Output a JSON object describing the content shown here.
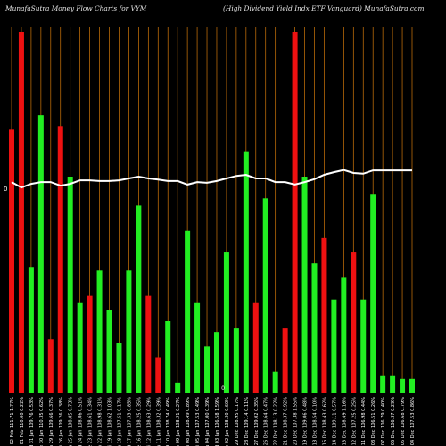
{
  "header": {
    "left": "MunafaSutra  Money Flow  Charts for VYM",
    "right": "(High Dividend Yield Indx ETF Vanguard) MunafaSutra.com"
  },
  "chart_data": {
    "type": "bar",
    "background": "#000000",
    "colors": {
      "up": "#22ee22",
      "down": "#ee1111",
      "line": "#ffffff",
      "grid": "#d2780a"
    },
    "ylim": [
      0,
      100
    ],
    "categories": [
      "Fri 02 Feb 111.71 1.77%",
      "Thu 01 Feb 110.00 0.22%",
      "Wed 31 Jan 109.76 0.53%",
      "Tue 30 Jan 110.35 0.62%",
      "Mon 29 Jan 109.66 0.37%",
      "Fri 26 Jan 109.26 0.38%",
      "Thu 25 Jan 108.85 0.73%",
      "Wed 24 Jan 108.06 0.51%",
      "Tue 23 Jan 108.61 0.34%",
      "Mon 22 Jan 108.98 0.31%",
      "Fri 19 Jan 108.62 1.03%",
      "Thu 18 Jan 107.51 0.17%",
      "Wed 17 Jan 107.33 0.85%",
      "Tue 16 Jan 108.25 0.35%",
      "Fri 12 Jan 108.63 0.29%",
      "Thu 11 Jan 108.32 0.39%",
      "Wed 10 Jan 108.74 0.49%",
      "Tue 09 Jan 108.21 0.27%",
      "Mon 08 Jan 108.49 0.89%",
      "Fri 05 Jan 107.53 0.49%",
      "Thu 04 Jan 107.00 0.39%",
      "Wed 03 Jan 106.58 1.59%",
      "Tue 02 Jan 108.30 0.60%",
      "Fri 29 Dec 108.95 0.17%",
      "Thu 28 Dec 109.14 0.11%",
      "Wed 27 Dec 109.02 0.35%",
      "Tue 26 Dec 108.64 0.47%",
      "Fri 22 Dec 108.13 0.22%",
      "Thu 21 Dec 108.37 0.92%",
      "Wed 20 Dec 107.38 1.55%",
      "Tue 19 Dec 109.06 0.48%",
      "Mon 18 Dec 108.54 0.10%",
      "Fri 15 Dec 108.43 0.62%",
      "Thu 14 Dec 109.11 0.57%",
      "Wed 13 Dec 108.49 1.16%",
      "Tue 12 Dec 107.25 0.25%",
      "Mon 11 Dec 106.98 0.44%",
      "Fri 08 Dec 106.51 0.26%",
      "Thu 07 Dec 106.79 0.40%",
      "Wed 06 Dec 106.37 0.29%",
      "Tue 05 Dec 106.68 0.79%",
      "Mon 04 Dec 107.53 0.86%"
    ],
    "directions": [
      "down",
      "down",
      "up",
      "up",
      "down",
      "down",
      "up",
      "up",
      "down",
      "up",
      "up",
      "up",
      "up",
      "up",
      "down",
      "down",
      "up",
      "up",
      "up",
      "up",
      "up",
      "up",
      "up",
      "up",
      "up",
      "down",
      "up",
      "up",
      "down",
      "down",
      "up",
      "up",
      "down",
      "up",
      "up",
      "down",
      "up",
      "up",
      "up",
      "up",
      "up",
      "up"
    ],
    "values": [
      73,
      100,
      35,
      77,
      15,
      74,
      60,
      25,
      27,
      34,
      23,
      14,
      34,
      52,
      27,
      10,
      20,
      3,
      45,
      25,
      13,
      17,
      39,
      18,
      67,
      25,
      54,
      6,
      18,
      100,
      60,
      36,
      43,
      26,
      32,
      39,
      26,
      55,
      5,
      5,
      4,
      4
    ],
    "line": [
      58.5,
      57,
      58,
      58.5,
      58.5,
      57.5,
      58,
      59,
      59,
      58.8,
      58.8,
      59,
      59.5,
      60,
      59.5,
      59.2,
      58.8,
      58.8,
      57.8,
      58.5,
      58.3,
      58.8,
      59.5,
      60.2,
      60.5,
      59.5,
      59.5,
      58.5,
      58.5,
      57.8,
      58.5,
      59.3,
      60.5,
      61.2,
      61.8,
      61,
      60.8,
      61.7,
      61.7,
      61.7,
      61.7,
      61.7
    ],
    "start_marker": "0"
  }
}
